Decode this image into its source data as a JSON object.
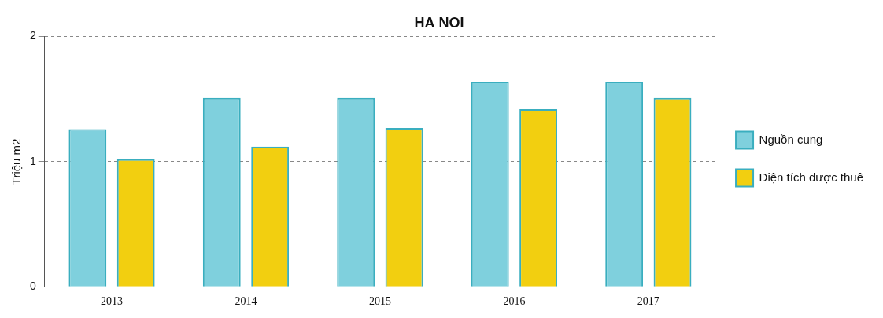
{
  "chart_data": {
    "type": "bar",
    "title": "HA NOI",
    "y_label": "Triệu m2",
    "categories": [
      "2013",
      "2014",
      "2015",
      "2016",
      "2017"
    ],
    "series": [
      {
        "name": "Nguồn cung",
        "color": "#7fd0dd",
        "values": [
          1.26,
          1.51,
          1.51,
          1.64,
          1.64
        ]
      },
      {
        "name": "Diện tích được thuê",
        "color": "#f2cf10",
        "values": [
          1.02,
          1.12,
          1.27,
          1.42,
          1.51
        ]
      }
    ],
    "ylim": [
      0,
      2
    ],
    "yticks": [
      0,
      1,
      2
    ],
    "grid": true,
    "legend": "right"
  }
}
